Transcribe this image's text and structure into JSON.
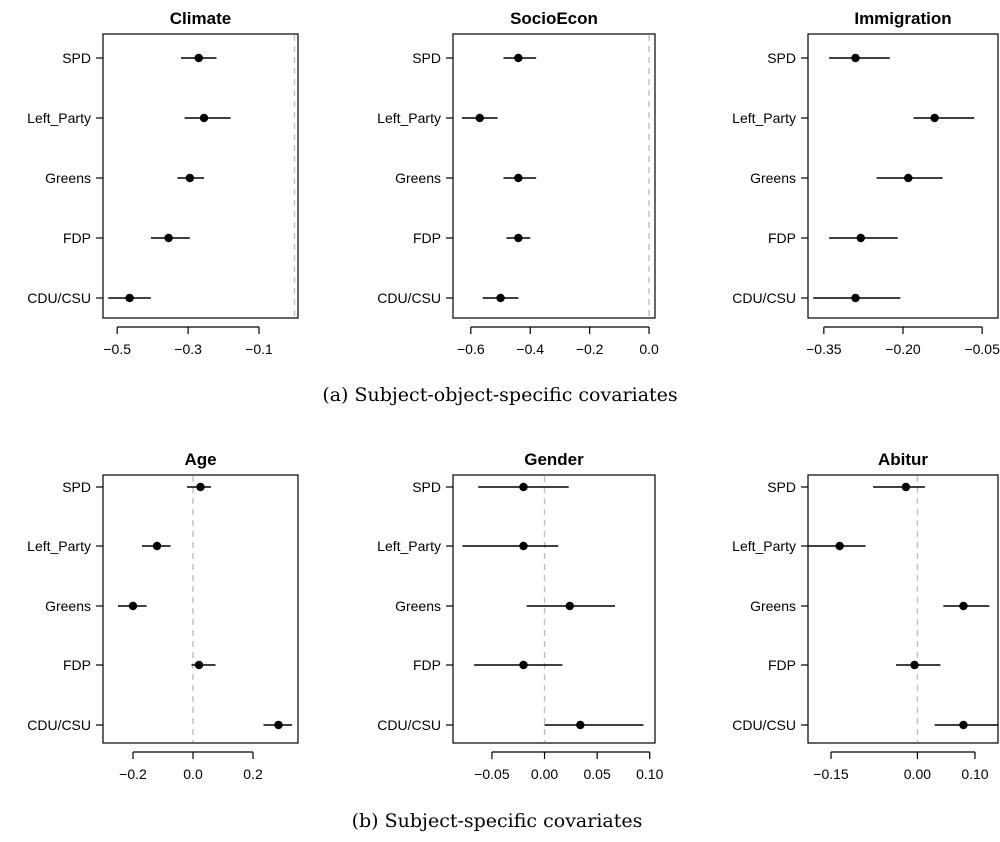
{
  "figure": {
    "caption_a": "(a) Subject-object-specific covariates",
    "caption_b": "(b) Subject-specific covariates"
  },
  "chart_data": [
    {
      "type": "scatter",
      "title": "Climate",
      "categories": [
        "SPD",
        "Left_Party",
        "Greens",
        "FDP",
        "CDU/CSU"
      ],
      "estimates": [
        -0.27,
        -0.255,
        -0.295,
        -0.355,
        -0.465
      ],
      "ci_low": [
        -0.32,
        -0.31,
        -0.33,
        -0.405,
        -0.525
      ],
      "ci_high": [
        -0.22,
        -0.18,
        -0.255,
        -0.295,
        -0.405
      ],
      "xlim": [
        -0.54,
        0.01
      ],
      "xticks": [
        -0.5,
        -0.3,
        -0.1
      ],
      "xtick_labels": [
        "−0.5",
        "−0.3",
        "−0.1"
      ],
      "reference_line": 0,
      "grid": false,
      "legend": "none"
    },
    {
      "type": "scatter",
      "title": "SocioEcon",
      "categories": [
        "SPD",
        "Left_Party",
        "Greens",
        "FDP",
        "CDU/CSU"
      ],
      "estimates": [
        -0.44,
        -0.57,
        -0.44,
        -0.44,
        -0.5
      ],
      "ci_low": [
        -0.49,
        -0.63,
        -0.49,
        -0.48,
        -0.56
      ],
      "ci_high": [
        -0.38,
        -0.51,
        -0.38,
        -0.4,
        -0.44
      ],
      "xlim": [
        -0.66,
        0.02
      ],
      "xticks": [
        -0.6,
        -0.4,
        -0.2,
        0.0
      ],
      "xtick_labels": [
        "−0.6",
        "−0.4",
        "−0.2",
        "0.0"
      ],
      "reference_line": 0,
      "grid": false,
      "legend": "none"
    },
    {
      "type": "scatter",
      "title": "Immigration",
      "categories": [
        "SPD",
        "Left_Party",
        "Greens",
        "FDP",
        "CDU/CSU"
      ],
      "estimates": [
        -0.29,
        -0.14,
        -0.19,
        -0.28,
        -0.29
      ],
      "ci_low": [
        -0.34,
        -0.18,
        -0.25,
        -0.34,
        -0.37
      ],
      "ci_high": [
        -0.225,
        -0.065,
        -0.125,
        -0.21,
        -0.205
      ],
      "xlim": [
        -0.38,
        -0.02
      ],
      "xticks": [
        -0.35,
        -0.2,
        -0.05
      ],
      "xtick_labels": [
        "−0.35",
        "−0.20",
        "−0.05"
      ],
      "reference_line": 0,
      "grid": false,
      "legend": "none"
    },
    {
      "type": "scatter",
      "title": "Age",
      "categories": [
        "SPD",
        "Left_Party",
        "Greens",
        "FDP",
        "CDU/CSU"
      ],
      "estimates": [
        0.025,
        -0.12,
        -0.2,
        0.02,
        0.285
      ],
      "ci_low": [
        -0.02,
        -0.17,
        -0.25,
        -0.005,
        0.235
      ],
      "ci_high": [
        0.06,
        -0.075,
        -0.155,
        0.075,
        0.33
      ],
      "xlim": [
        -0.3,
        0.35
      ],
      "xticks": [
        -0.2,
        0.0,
        0.2
      ],
      "xtick_labels": [
        "−0.2",
        "0.0",
        "0.2"
      ],
      "reference_line": 0,
      "grid": false,
      "legend": "none"
    },
    {
      "type": "scatter",
      "title": "Gender",
      "categories": [
        "SPD",
        "Left_Party",
        "Greens",
        "FDP",
        "CDU/CSU"
      ],
      "estimates": [
        -0.02,
        -0.02,
        0.024,
        -0.02,
        0.034
      ],
      "ci_low": [
        -0.063,
        -0.078,
        -0.017,
        -0.067,
        0.0
      ],
      "ci_high": [
        0.023,
        0.013,
        0.067,
        0.017,
        0.094
      ],
      "xlim": [
        -0.087,
        0.105
      ],
      "xticks": [
        -0.05,
        0.0,
        0.05,
        0.1
      ],
      "xtick_labels": [
        "−0.05",
        "0.00",
        "0.05",
        "0.10"
      ],
      "reference_line": 0,
      "grid": false,
      "legend": "none"
    },
    {
      "type": "scatter",
      "title": "Abitur",
      "categories": [
        "SPD",
        "Left_Party",
        "Greens",
        "FDP",
        "CDU/CSU"
      ],
      "estimates": [
        -0.02,
        -0.135,
        0.08,
        -0.005,
        0.08
      ],
      "ci_low": [
        -0.077,
        -0.19,
        0.045,
        -0.037,
        0.03
      ],
      "ci_high": [
        0.013,
        -0.09,
        0.125,
        0.04,
        0.14
      ],
      "xlim": [
        -0.19,
        0.14
      ],
      "xticks": [
        -0.15,
        0.0,
        0.1
      ],
      "xtick_labels": [
        "−0.15",
        "0.00",
        "0.10"
      ],
      "reference_line": 0,
      "grid": false,
      "legend": "none"
    }
  ]
}
